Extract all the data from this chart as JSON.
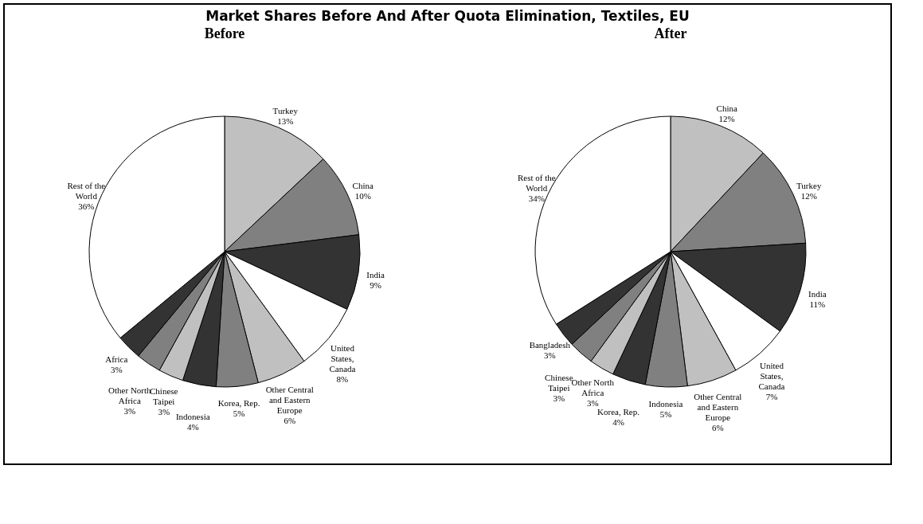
{
  "chart_data": [
    {
      "type": "pie",
      "title": "Before",
      "annotations": [
        "Market Shares Before And After Quota Elimination, Textiles, EU"
      ],
      "categories": [
        "Turkey",
        "China",
        "India",
        "United States, Canada",
        "Other Central and Eastern Europe",
        "Korea, Rep.",
        "Indonesia",
        "Chinese Taipei",
        "Other North Africa",
        "Africa",
        "Rest of the World"
      ],
      "values": [
        13,
        10,
        9,
        8,
        6,
        5,
        4,
        3,
        3,
        3,
        36
      ],
      "value_labels": [
        "13%",
        "10%",
        "9%",
        "8%",
        "6%",
        "5%",
        "4%",
        "3%",
        "3%",
        "3%",
        "36%"
      ],
      "colors": [
        "#c0c0c0",
        "#808080",
        "#333333",
        "#ffffff",
        "#c0c0c0",
        "#808080",
        "#333333",
        "#c0c0c0",
        "#808080",
        "#333333",
        "#ffffff"
      ]
    },
    {
      "type": "pie",
      "title": "After",
      "categories": [
        "China",
        "Turkey",
        "India",
        "United States, Canada",
        "Other Central and Eastern Europe",
        "Indonesia",
        "Korea, Rep.",
        "Other North Africa",
        "Chinese Taipei",
        "Bangladesh",
        "Rest of the World"
      ],
      "values": [
        12,
        12,
        11,
        7,
        6,
        5,
        4,
        3,
        3,
        3,
        34
      ],
      "value_labels": [
        "12%",
        "12%",
        "11%",
        "7%",
        "6%",
        "5%",
        "4%",
        "3%",
        "3%",
        "3%",
        "34%"
      ],
      "colors": [
        "#c0c0c0",
        "#808080",
        "#333333",
        "#ffffff",
        "#c0c0c0",
        "#808080",
        "#333333",
        "#c0c0c0",
        "#808080",
        "#333333",
        "#ffffff"
      ]
    }
  ]
}
